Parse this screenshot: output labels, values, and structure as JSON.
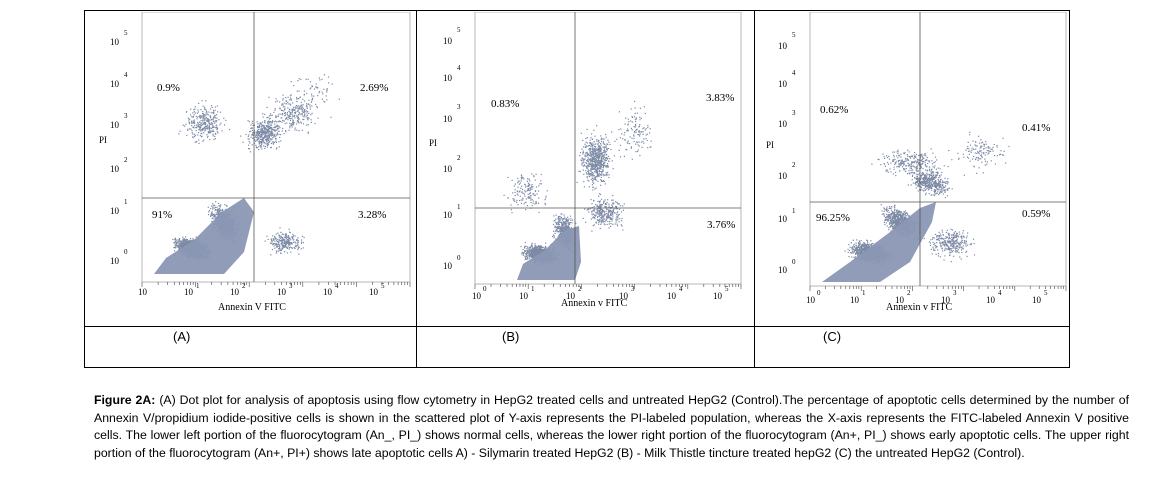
{
  "panels": [
    {
      "label": "(A)",
      "ylabel": "PI",
      "xlabel": "Annexin V FITC",
      "quadrants": {
        "ul": "0.9%",
        "ur": "2.69%",
        "ll": "91%",
        "lr": "3.28%"
      }
    },
    {
      "label": "(B)",
      "ylabel": "PI",
      "xlabel": "Annexin v FITC",
      "quadrants": {
        "ul": "0.83%",
        "ur": "3.83%",
        "ll": "",
        "lr": "3.76%"
      }
    },
    {
      "label": "(C)",
      "ylabel": "PI",
      "xlabel": "Annexin v FITC",
      "quadrants": {
        "ul": "0.62%",
        "ur": "0.41%",
        "ll": "96.25%",
        "lr": "0.59%"
      }
    }
  ],
  "tick_base": "10",
  "y_exponents": [
    "5",
    "4",
    "3",
    "2",
    "1",
    "0"
  ],
  "x_exponents": [
    "0",
    "1",
    "2",
    "3",
    "4",
    "5"
  ],
  "caption": {
    "prefix": "Figure 2A:",
    "text": " (A) Dot plot for analysis of apoptosis using flow cytometry in HepG2 treated cells and untreated HepG2 (Control).The percentage of apoptotic cells determined by the number of Annexin V/propidium iodide-positive cells is shown in the scattered plot of  Y-axis represents the PI-labeled population, whereas the X-axis represents the FITC-labeled Annexin V positive cells. The lower left portion of the fluorocytogram (An_, PI_) shows normal cells, whereas the lower right portion of the fluorocytogram (An+, PI_) shows early apoptotic cells. The upper right portion of the fluorocytogram (An+, PI+) shows late apoptotic cells A) - Silymarin treated HepG2 (B) - Milk Thistle tincture treated hepG2 (C) the untreated HepG2 (Control)."
  },
  "colors": {
    "dots": "#7d8aa6",
    "dense": "#8a97b4",
    "lines": "#555555"
  }
}
